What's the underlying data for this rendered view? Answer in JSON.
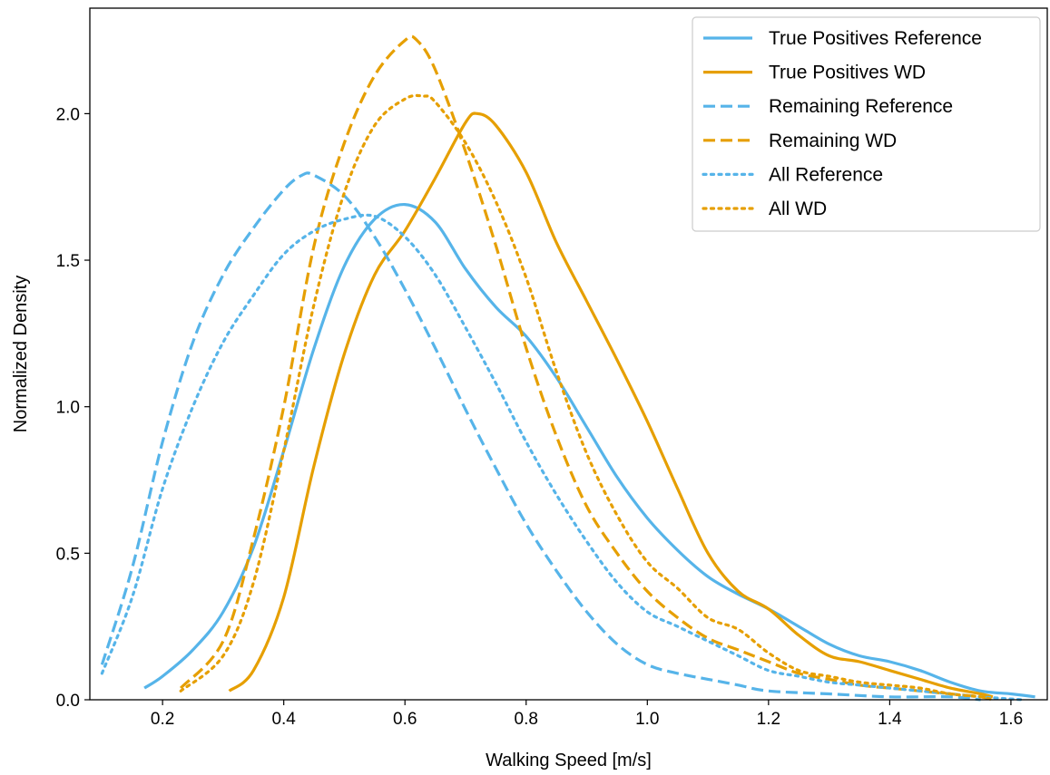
{
  "chart_data": {
    "type": "line",
    "title": "",
    "xlabel": "Walking Speed [m/s]",
    "ylabel": "Normalized Density",
    "xlim": [
      0.08,
      1.66
    ],
    "ylim": [
      0.0,
      2.36
    ],
    "xticks": [
      0.2,
      0.4,
      0.6,
      0.8,
      1.0,
      1.2,
      1.4,
      1.6
    ],
    "yticks": [
      0.0,
      0.5,
      1.0,
      1.5,
      2.0
    ],
    "grid": false,
    "legend_position": "top-right",
    "series": [
      {
        "name": "True Positives Reference",
        "color": "#56b4e9",
        "dash": "solid",
        "points": [
          [
            0.17,
            0.04
          ],
          [
            0.2,
            0.08
          ],
          [
            0.25,
            0.17
          ],
          [
            0.3,
            0.3
          ],
          [
            0.35,
            0.52
          ],
          [
            0.4,
            0.85
          ],
          [
            0.45,
            1.2
          ],
          [
            0.5,
            1.48
          ],
          [
            0.55,
            1.64
          ],
          [
            0.6,
            1.69
          ],
          [
            0.65,
            1.63
          ],
          [
            0.7,
            1.47
          ],
          [
            0.75,
            1.34
          ],
          [
            0.8,
            1.24
          ],
          [
            0.85,
            1.1
          ],
          [
            0.9,
            0.93
          ],
          [
            0.95,
            0.76
          ],
          [
            1.0,
            0.62
          ],
          [
            1.05,
            0.51
          ],
          [
            1.1,
            0.42
          ],
          [
            1.15,
            0.36
          ],
          [
            1.2,
            0.31
          ],
          [
            1.25,
            0.25
          ],
          [
            1.3,
            0.19
          ],
          [
            1.35,
            0.15
          ],
          [
            1.4,
            0.13
          ],
          [
            1.45,
            0.1
          ],
          [
            1.5,
            0.06
          ],
          [
            1.55,
            0.03
          ],
          [
            1.6,
            0.02
          ],
          [
            1.64,
            0.01
          ]
        ]
      },
      {
        "name": "True Positives WD",
        "color": "#e69f00",
        "dash": "solid",
        "points": [
          [
            0.31,
            0.03
          ],
          [
            0.35,
            0.1
          ],
          [
            0.4,
            0.35
          ],
          [
            0.45,
            0.8
          ],
          [
            0.5,
            1.18
          ],
          [
            0.55,
            1.45
          ],
          [
            0.6,
            1.6
          ],
          [
            0.65,
            1.78
          ],
          [
            0.7,
            1.97
          ],
          [
            0.72,
            2.0
          ],
          [
            0.75,
            1.96
          ],
          [
            0.8,
            1.8
          ],
          [
            0.85,
            1.56
          ],
          [
            0.9,
            1.36
          ],
          [
            0.95,
            1.16
          ],
          [
            1.0,
            0.95
          ],
          [
            1.05,
            0.72
          ],
          [
            1.1,
            0.5
          ],
          [
            1.15,
            0.37
          ],
          [
            1.2,
            0.31
          ],
          [
            1.25,
            0.22
          ],
          [
            1.3,
            0.15
          ],
          [
            1.35,
            0.13
          ],
          [
            1.4,
            0.1
          ],
          [
            1.45,
            0.07
          ],
          [
            1.5,
            0.04
          ],
          [
            1.55,
            0.02
          ],
          [
            1.57,
            0.01
          ]
        ]
      },
      {
        "name": "Remaining Reference",
        "color": "#56b4e9",
        "dash": "dashed",
        "points": [
          [
            0.1,
            0.12
          ],
          [
            0.15,
            0.45
          ],
          [
            0.2,
            0.88
          ],
          [
            0.25,
            1.22
          ],
          [
            0.3,
            1.45
          ],
          [
            0.35,
            1.61
          ],
          [
            0.4,
            1.74
          ],
          [
            0.43,
            1.79
          ],
          [
            0.45,
            1.79
          ],
          [
            0.5,
            1.72
          ],
          [
            0.55,
            1.58
          ],
          [
            0.6,
            1.4
          ],
          [
            0.65,
            1.2
          ],
          [
            0.7,
            0.99
          ],
          [
            0.75,
            0.79
          ],
          [
            0.8,
            0.6
          ],
          [
            0.85,
            0.44
          ],
          [
            0.9,
            0.3
          ],
          [
            0.95,
            0.19
          ],
          [
            1.0,
            0.12
          ],
          [
            1.05,
            0.09
          ],
          [
            1.1,
            0.07
          ],
          [
            1.15,
            0.05
          ],
          [
            1.2,
            0.03
          ],
          [
            1.3,
            0.02
          ],
          [
            1.4,
            0.01
          ],
          [
            1.5,
            0.01
          ],
          [
            1.55,
            0.0
          ]
        ]
      },
      {
        "name": "Remaining WD",
        "color": "#e69f00",
        "dash": "dashed",
        "points": [
          [
            0.23,
            0.04
          ],
          [
            0.3,
            0.2
          ],
          [
            0.35,
            0.55
          ],
          [
            0.4,
            1.0
          ],
          [
            0.45,
            1.55
          ],
          [
            0.5,
            1.9
          ],
          [
            0.55,
            2.13
          ],
          [
            0.6,
            2.25
          ],
          [
            0.62,
            2.25
          ],
          [
            0.65,
            2.15
          ],
          [
            0.7,
            1.87
          ],
          [
            0.75,
            1.55
          ],
          [
            0.8,
            1.2
          ],
          [
            0.85,
            0.9
          ],
          [
            0.9,
            0.66
          ],
          [
            0.95,
            0.5
          ],
          [
            1.0,
            0.37
          ],
          [
            1.05,
            0.28
          ],
          [
            1.1,
            0.21
          ],
          [
            1.15,
            0.17
          ],
          [
            1.2,
            0.13
          ],
          [
            1.25,
            0.09
          ],
          [
            1.3,
            0.07
          ],
          [
            1.35,
            0.05
          ],
          [
            1.4,
            0.04
          ],
          [
            1.45,
            0.03
          ],
          [
            1.5,
            0.02
          ],
          [
            1.55,
            0.01
          ],
          [
            1.57,
            0.0
          ]
        ]
      },
      {
        "name": "All Reference",
        "color": "#56b4e9",
        "dash": "dotted",
        "points": [
          [
            0.1,
            0.09
          ],
          [
            0.15,
            0.35
          ],
          [
            0.2,
            0.72
          ],
          [
            0.25,
            1.0
          ],
          [
            0.3,
            1.22
          ],
          [
            0.35,
            1.38
          ],
          [
            0.4,
            1.52
          ],
          [
            0.45,
            1.6
          ],
          [
            0.5,
            1.64
          ],
          [
            0.55,
            1.65
          ],
          [
            0.6,
            1.58
          ],
          [
            0.65,
            1.45
          ],
          [
            0.7,
            1.27
          ],
          [
            0.75,
            1.08
          ],
          [
            0.8,
            0.88
          ],
          [
            0.85,
            0.7
          ],
          [
            0.9,
            0.54
          ],
          [
            0.95,
            0.4
          ],
          [
            1.0,
            0.3
          ],
          [
            1.05,
            0.25
          ],
          [
            1.1,
            0.2
          ],
          [
            1.15,
            0.15
          ],
          [
            1.2,
            0.1
          ],
          [
            1.25,
            0.08
          ],
          [
            1.3,
            0.06
          ],
          [
            1.35,
            0.05
          ],
          [
            1.4,
            0.04
          ],
          [
            1.45,
            0.03
          ],
          [
            1.5,
            0.02
          ],
          [
            1.55,
            0.01
          ],
          [
            1.62,
            0.0
          ]
        ]
      },
      {
        "name": "All WD",
        "color": "#e69f00",
        "dash": "dotted",
        "points": [
          [
            0.23,
            0.03
          ],
          [
            0.3,
            0.15
          ],
          [
            0.35,
            0.4
          ],
          [
            0.4,
            0.85
          ],
          [
            0.45,
            1.35
          ],
          [
            0.5,
            1.73
          ],
          [
            0.55,
            1.96
          ],
          [
            0.6,
            2.05
          ],
          [
            0.63,
            2.06
          ],
          [
            0.65,
            2.04
          ],
          [
            0.7,
            1.9
          ],
          [
            0.75,
            1.7
          ],
          [
            0.8,
            1.44
          ],
          [
            0.85,
            1.12
          ],
          [
            0.9,
            0.84
          ],
          [
            0.95,
            0.63
          ],
          [
            1.0,
            0.47
          ],
          [
            1.05,
            0.38
          ],
          [
            1.1,
            0.28
          ],
          [
            1.15,
            0.24
          ],
          [
            1.2,
            0.16
          ],
          [
            1.25,
            0.1
          ],
          [
            1.3,
            0.08
          ],
          [
            1.35,
            0.06
          ],
          [
            1.4,
            0.05
          ],
          [
            1.45,
            0.04
          ],
          [
            1.5,
            0.02
          ],
          [
            1.55,
            0.01
          ],
          [
            1.57,
            0.0
          ]
        ]
      }
    ]
  }
}
